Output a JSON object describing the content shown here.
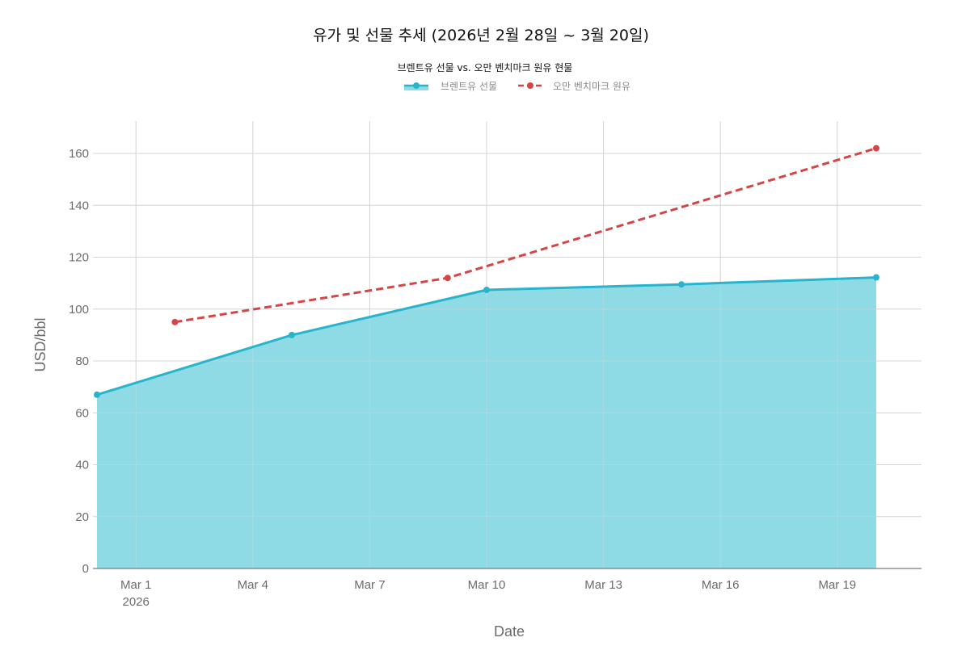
{
  "chart_data": {
    "type": "line",
    "title": "유가 및 선물 추세 (2026년 2월 28일 ~ 3월 20일)",
    "subtitle": "브렌트유 선물 vs. 오만 벤치마크 원유 현물",
    "xlabel": "Date",
    "ylabel": "USD/bbl",
    "ylim": [
      0,
      172
    ],
    "y_ticks": [
      0,
      20,
      40,
      60,
      80,
      100,
      120,
      140,
      160
    ],
    "x_range": [
      "2026-02-28",
      "2026-03-21"
    ],
    "x_ticks": [
      {
        "date": "2026-03-01",
        "label": "Mar 1",
        "sublabel": "2026"
      },
      {
        "date": "2026-03-04",
        "label": "Mar 4"
      },
      {
        "date": "2026-03-07",
        "label": "Mar 7"
      },
      {
        "date": "2026-03-10",
        "label": "Mar 10"
      },
      {
        "date": "2026-03-13",
        "label": "Mar 13"
      },
      {
        "date": "2026-03-16",
        "label": "Mar 16"
      },
      {
        "date": "2026-03-19",
        "label": "Mar 19"
      }
    ],
    "grid": true,
    "legend_position": "top-center",
    "series": [
      {
        "name": "브렌트유 선물",
        "style": "area",
        "color": "#26b5cc",
        "fill_color": "#8fdbe5",
        "x": [
          "2026-02-28",
          "2026-03-05",
          "2026-03-10",
          "2026-03-15",
          "2026-03-20"
        ],
        "values": [
          67,
          90,
          107.4,
          109.5,
          112.2
        ]
      },
      {
        "name": "오만 벤치마크 원유",
        "style": "dashed-line",
        "color": "#d64545",
        "x": [
          "2026-03-02",
          "2026-03-09",
          "2026-03-20"
        ],
        "values": [
          95,
          112,
          162
        ]
      }
    ]
  }
}
